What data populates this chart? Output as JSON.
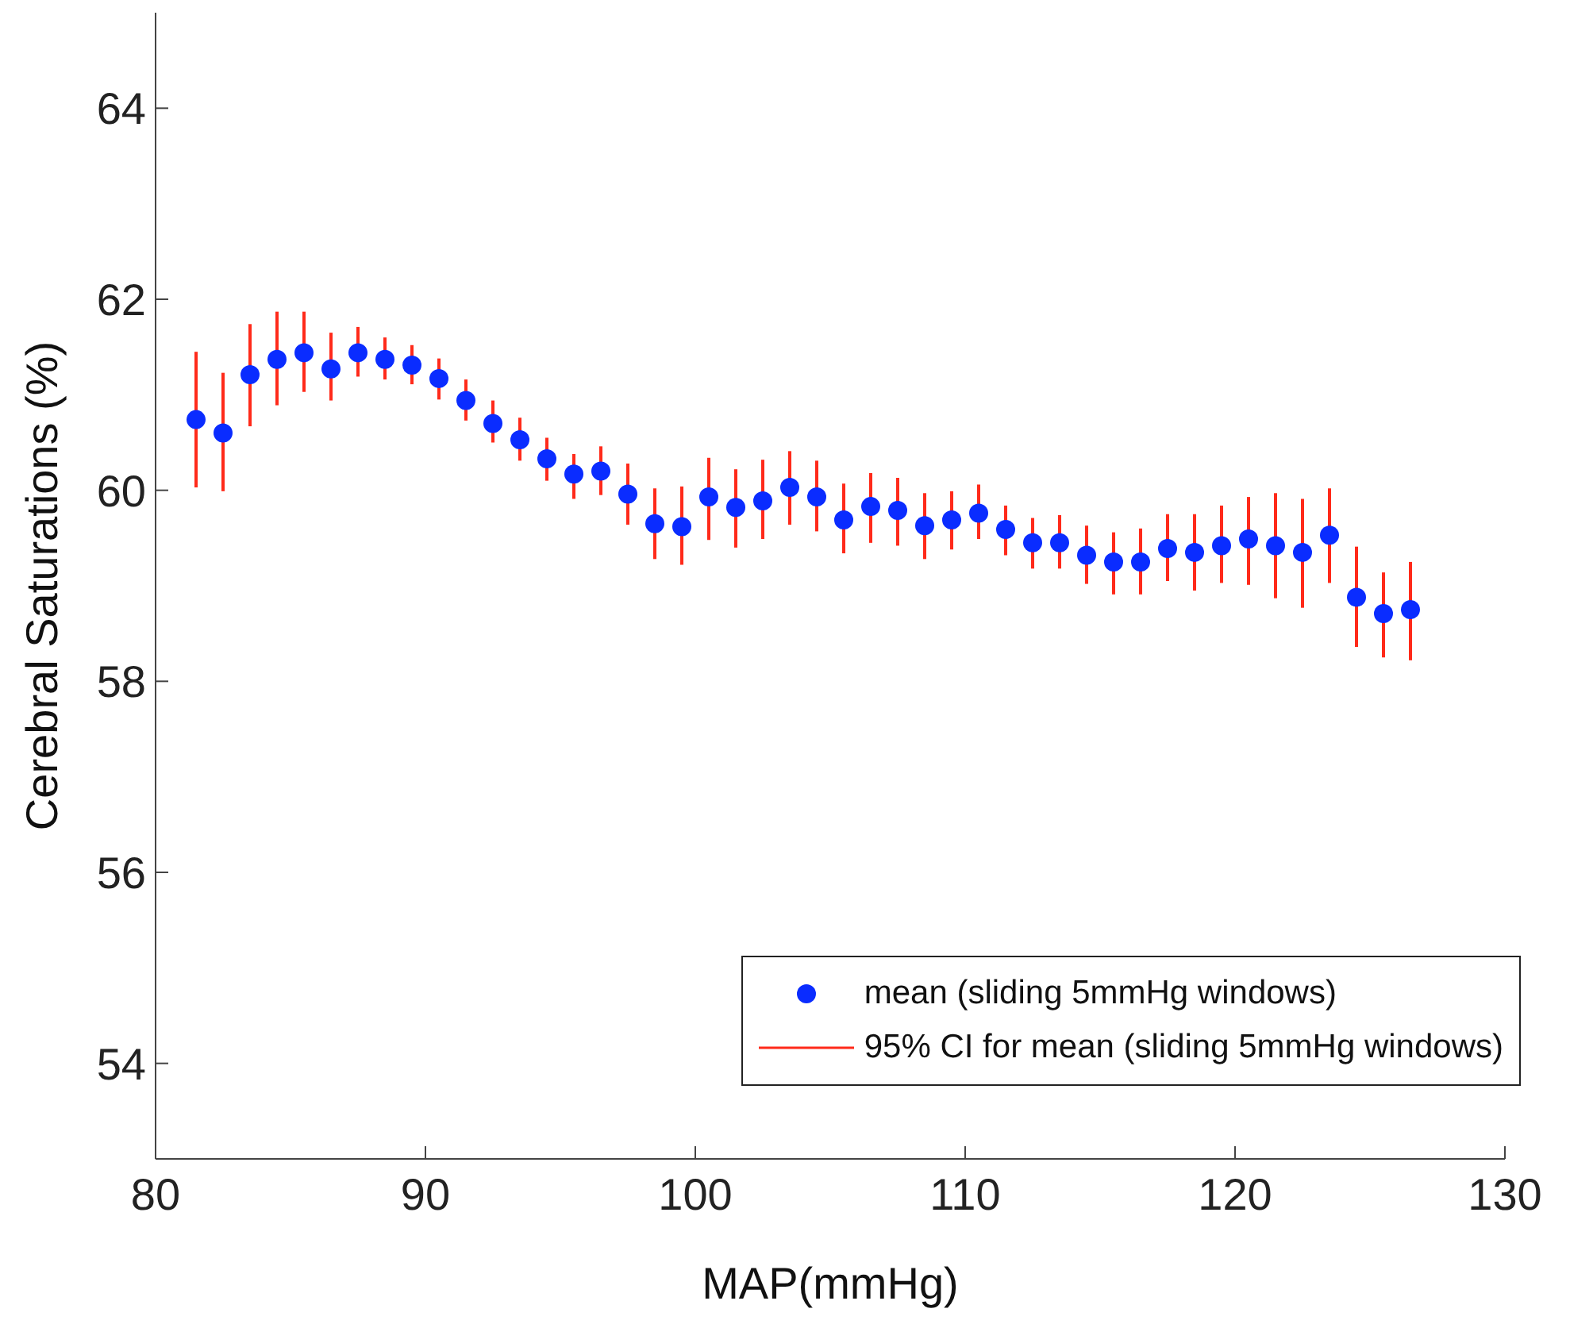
{
  "chart_data": {
    "type": "scatter",
    "xlabel": "MAP(mmHg)",
    "ylabel": "Cerebral Saturations (%)",
    "x": [
      81.5,
      82.5,
      83.5,
      84.5,
      85.5,
      86.5,
      87.5,
      88.5,
      89.5,
      90.5,
      91.5,
      92.5,
      93.5,
      94.5,
      95.5,
      96.5,
      97.5,
      98.5,
      99.5,
      100.5,
      101.5,
      102.5,
      103.5,
      104.5,
      105.5,
      106.5,
      107.5,
      108.5,
      109.5,
      110.5,
      111.5,
      112.5,
      113.5,
      114.5,
      115.5,
      116.5,
      117.5,
      118.5,
      119.5,
      120.5,
      121.5,
      122.5,
      123.5,
      124.5,
      125.5,
      126.5
    ],
    "series": [
      {
        "name": "mean (sliding 5mmHg windows)",
        "color": "#0a2cff",
        "values": [
          60.74,
          60.6,
          61.21,
          61.37,
          61.44,
          61.27,
          61.44,
          61.37,
          61.31,
          61.17,
          60.94,
          60.7,
          60.53,
          60.33,
          60.17,
          60.2,
          59.96,
          59.65,
          59.62,
          59.93,
          59.82,
          59.89,
          60.03,
          59.93,
          59.69,
          59.83,
          59.79,
          59.63,
          59.69,
          59.76,
          59.59,
          59.45,
          59.45,
          59.32,
          59.25,
          59.25,
          59.39,
          59.35,
          59.42,
          59.49,
          59.42,
          59.35,
          59.53,
          58.88,
          58.71,
          58.75
        ],
        "errors": [
          [
            60.03,
            61.45
          ],
          [
            59.99,
            61.23
          ],
          [
            60.67,
            61.74
          ],
          [
            60.89,
            61.87
          ],
          [
            61.03,
            61.87
          ],
          [
            60.94,
            61.65
          ],
          [
            61.19,
            61.71
          ],
          [
            61.16,
            61.6
          ],
          [
            61.11,
            61.52
          ],
          [
            60.95,
            61.38
          ],
          [
            60.73,
            61.16
          ],
          [
            60.5,
            60.94
          ],
          [
            60.31,
            60.76
          ],
          [
            60.1,
            60.55
          ],
          [
            59.91,
            60.38
          ],
          [
            59.95,
            60.46
          ],
          [
            59.64,
            60.28
          ],
          [
            59.28,
            60.02
          ],
          [
            59.22,
            60.04
          ],
          [
            59.48,
            60.34
          ],
          [
            59.4,
            60.22
          ],
          [
            59.49,
            60.32
          ],
          [
            59.64,
            60.41
          ],
          [
            59.57,
            60.31
          ],
          [
            59.34,
            60.07
          ],
          [
            59.45,
            60.18
          ],
          [
            59.42,
            60.13
          ],
          [
            59.28,
            59.97
          ],
          [
            59.38,
            59.99
          ],
          [
            59.49,
            60.06
          ],
          [
            59.32,
            59.84
          ],
          [
            59.18,
            59.71
          ],
          [
            59.18,
            59.74
          ],
          [
            59.02,
            59.63
          ],
          [
            58.91,
            59.56
          ],
          [
            58.91,
            59.6
          ],
          [
            59.05,
            59.75
          ],
          [
            58.95,
            59.75
          ],
          [
            59.03,
            59.84
          ],
          [
            59.01,
            59.93
          ],
          [
            58.87,
            59.97
          ],
          [
            58.77,
            59.91
          ],
          [
            59.03,
            60.02
          ],
          [
            58.36,
            59.41
          ],
          [
            58.25,
            59.14
          ],
          [
            58.22,
            59.25
          ]
        ]
      }
    ],
    "annotations": [
      "95% CI for mean (sliding 5mmHg windows)"
    ],
    "xlim": [
      80,
      130
    ],
    "xticks": [
      80,
      90,
      100,
      110,
      120,
      130
    ],
    "ylim": [
      53,
      65
    ],
    "yticks": [
      54,
      56,
      58,
      60,
      62,
      64
    ],
    "marker": "circle",
    "legend": "bottom right",
    "grid": false
  }
}
